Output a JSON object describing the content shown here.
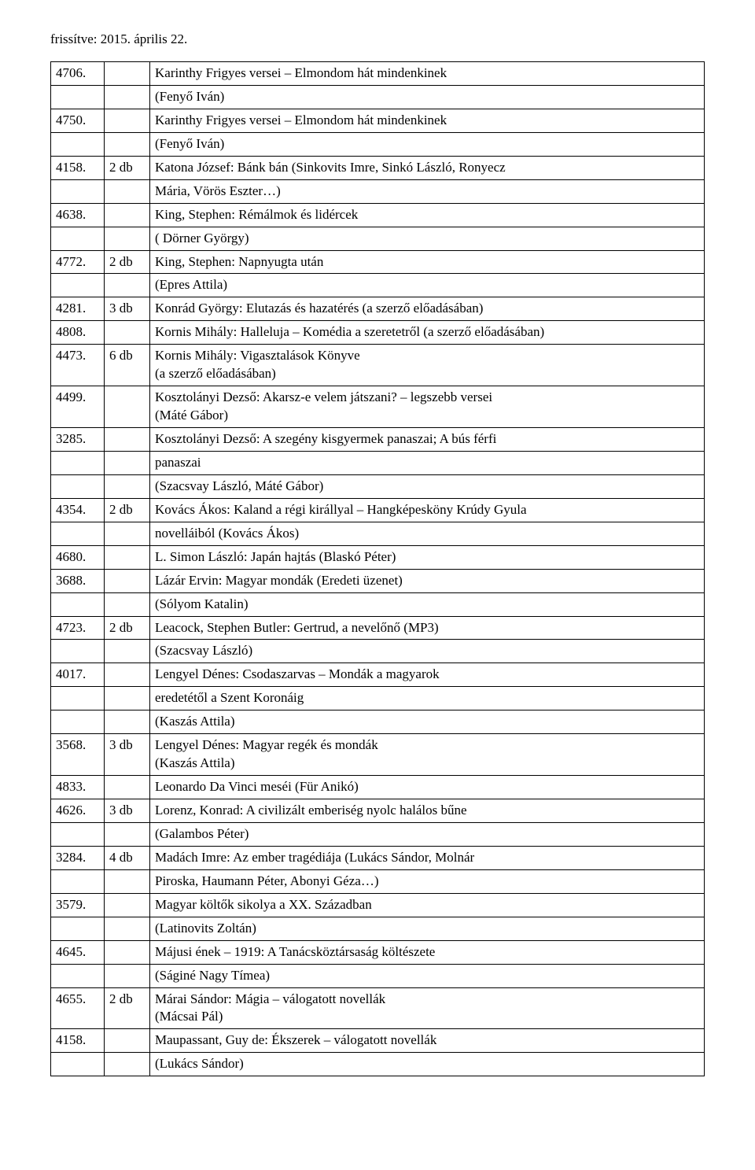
{
  "header": "frissítve: 2015. április 22.",
  "columns": [
    "id",
    "qty",
    "text"
  ],
  "rows": [
    [
      "4706.",
      "",
      "Karinthy Frigyes versei – Elmondom hát mindenkinek"
    ],
    [
      "",
      "",
      "(Fenyő Iván)"
    ],
    [
      "4750.",
      "",
      "Karinthy Frigyes versei – Elmondom hát mindenkinek"
    ],
    [
      "",
      "",
      "(Fenyő Iván)"
    ],
    [
      "4158.",
      "2 db",
      "Katona József: Bánk bán (Sinkovits Imre, Sinkó László, Ronyecz"
    ],
    [
      "",
      "",
      "Mária, Vörös Eszter…)"
    ],
    [
      "4638.",
      "",
      "King, Stephen: Rémálmok és lidércek"
    ],
    [
      "",
      "",
      "( Dörner György)"
    ],
    [
      "4772.",
      "2 db",
      "King, Stephen: Napnyugta után"
    ],
    [
      "",
      "",
      "(Epres Attila)"
    ],
    [
      "4281.",
      "3 db",
      "Konrád György: Elutazás és hazatérés (a szerző előadásában)"
    ],
    [
      "4808.",
      "",
      "Kornis Mihály: Halleluja – Komédia a szeretetről (a szerző előadásában)"
    ],
    [
      "4473.",
      "6 db",
      "Kornis Mihály: Vigasztalások Könyve\n(a szerző előadásában)"
    ],
    [
      "4499.",
      "",
      "Kosztolányi Dezső: Akarsz-e velem játszani? – legszebb versei\n(Máté Gábor)"
    ],
    [
      "3285.",
      "",
      "Kosztolányi Dezső: A szegény kisgyermek panaszai; A bús férfi"
    ],
    [
      "",
      "",
      "panaszai"
    ],
    [
      "",
      "",
      "(Szacsvay László, Máté Gábor)"
    ],
    [
      "4354.",
      "2 db",
      "Kovács Ákos: Kaland a régi királlyal – Hangképesköny Krúdy Gyula"
    ],
    [
      "",
      "",
      "novelláiból  (Kovács Ákos)"
    ],
    [
      "4680.",
      "",
      "L. Simon László: Japán hajtás   (Blaskó Péter)"
    ],
    [
      "3688.",
      "",
      "Lázár Ervin: Magyar mondák (Eredeti üzenet)"
    ],
    [
      "",
      "",
      "(Sólyom Katalin)"
    ],
    [
      "4723.",
      "2 db",
      "Leacock, Stephen Butler: Gertrud, a nevelőnő  (MP3)"
    ],
    [
      "",
      "",
      "(Szacsvay László)"
    ],
    [
      "4017.",
      "",
      "Lengyel Dénes: Csodaszarvas – Mondák a magyarok"
    ],
    [
      "",
      "",
      "eredetétől a Szent Koronáig"
    ],
    [
      "",
      "",
      "(Kaszás Attila)"
    ],
    [
      "3568.",
      "3 db",
      "Lengyel Dénes: Magyar regék és mondák\n(Kaszás Attila)"
    ],
    [
      "4833.",
      "",
      "Leonardo Da Vinci meséi   (Für Anikó)"
    ],
    [
      "4626.",
      "3 db",
      "Lorenz, Konrad: A civilizált emberiség nyolc halálos bűne"
    ],
    [
      "",
      "",
      "(Galambos Péter)"
    ],
    [
      "3284.",
      "4 db",
      "Madách Imre: Az ember tragédiája (Lukács Sándor, Molnár"
    ],
    [
      "",
      "",
      "Piroska, Haumann Péter, Abonyi Géza…)"
    ],
    [
      "3579.",
      "",
      "Magyar költők sikolya a XX. Században"
    ],
    [
      "",
      "",
      "(Latinovits Zoltán)"
    ],
    [
      "4645.",
      "",
      "Májusi ének – 1919: A Tanácsköztársaság költészete"
    ],
    [
      "",
      "",
      "(Ságiné Nagy Tímea)"
    ],
    [
      "4655.",
      "2 db",
      "Márai Sándor: Mágia – válogatott novellák\n(Mácsai Pál)"
    ],
    [
      "4158.",
      "",
      "Maupassant, Guy de: Ékszerek – válogatott novellák"
    ],
    [
      "",
      "",
      "(Lukács Sándor)"
    ]
  ]
}
